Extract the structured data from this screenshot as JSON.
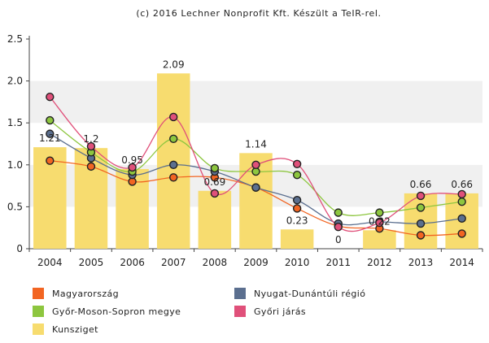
{
  "chart_data": {
    "type": "bar",
    "title": "(c) 2016 Lechner Nonprofit Kft. Készült a TeIR-rel.",
    "xlabel": "",
    "ylabel": "",
    "ylim": [
      0,
      2.5
    ],
    "yticks": [
      0,
      0.5,
      1.0,
      1.5,
      2.0,
      2.5
    ],
    "ytick_labels": [
      "0",
      "0.5",
      "1.0",
      "1.5",
      "2.0",
      "2.5"
    ],
    "grid": "horizontal bands",
    "legend_position": "bottom",
    "categories": [
      "2004",
      "2005",
      "2006",
      "2007",
      "2008",
      "2009",
      "2010",
      "2011",
      "2012",
      "2013",
      "2014"
    ],
    "bar_series": {
      "name": "Kunsziget",
      "color": "#f7dc6f",
      "values": [
        1.21,
        1.2,
        0.95,
        2.09,
        0.69,
        1.14,
        0.23,
        0,
        0.22,
        0.66,
        0.66
      ],
      "labels": [
        "1.21",
        "1.2",
        "0.95",
        "2.09",
        "0.69",
        "1.14",
        "0.23",
        "0",
        "0.22",
        "0.66",
        "0.66"
      ]
    },
    "series": [
      {
        "name": "Magyarország",
        "color": "#f26522",
        "values": [
          1.05,
          0.98,
          0.8,
          0.85,
          0.85,
          0.73,
          0.48,
          0.27,
          0.24,
          0.16,
          0.18
        ]
      },
      {
        "name": "Nyugat-Dunántúli régió",
        "color": "#5b6f8f",
        "values": [
          1.37,
          1.08,
          0.88,
          1.0,
          0.92,
          0.73,
          0.58,
          0.3,
          0.32,
          0.3,
          0.36
        ]
      },
      {
        "name": "Győr-Moson-Sopron megye",
        "color": "#8dc63f",
        "values": [
          1.53,
          1.15,
          0.92,
          1.31,
          0.96,
          0.92,
          0.88,
          0.43,
          0.43,
          0.49,
          0.56
        ]
      },
      {
        "name": "Győri járás",
        "color": "#e0507a",
        "values": [
          1.81,
          1.22,
          0.97,
          1.57,
          0.66,
          1.0,
          1.01,
          0.26,
          0.31,
          0.63,
          0.65
        ]
      }
    ]
  },
  "legend": {
    "items": [
      {
        "label": "Magyarország",
        "color": "#f26522"
      },
      {
        "label": "Nyugat-Dunántúli régió",
        "color": "#5b6f8f"
      },
      {
        "label": "Győr-Moson-Sopron megye",
        "color": "#8dc63f"
      },
      {
        "label": "Győri járás",
        "color": "#e0507a"
      },
      {
        "label": "Kunsziget",
        "color": "#f7dc6f"
      }
    ]
  }
}
